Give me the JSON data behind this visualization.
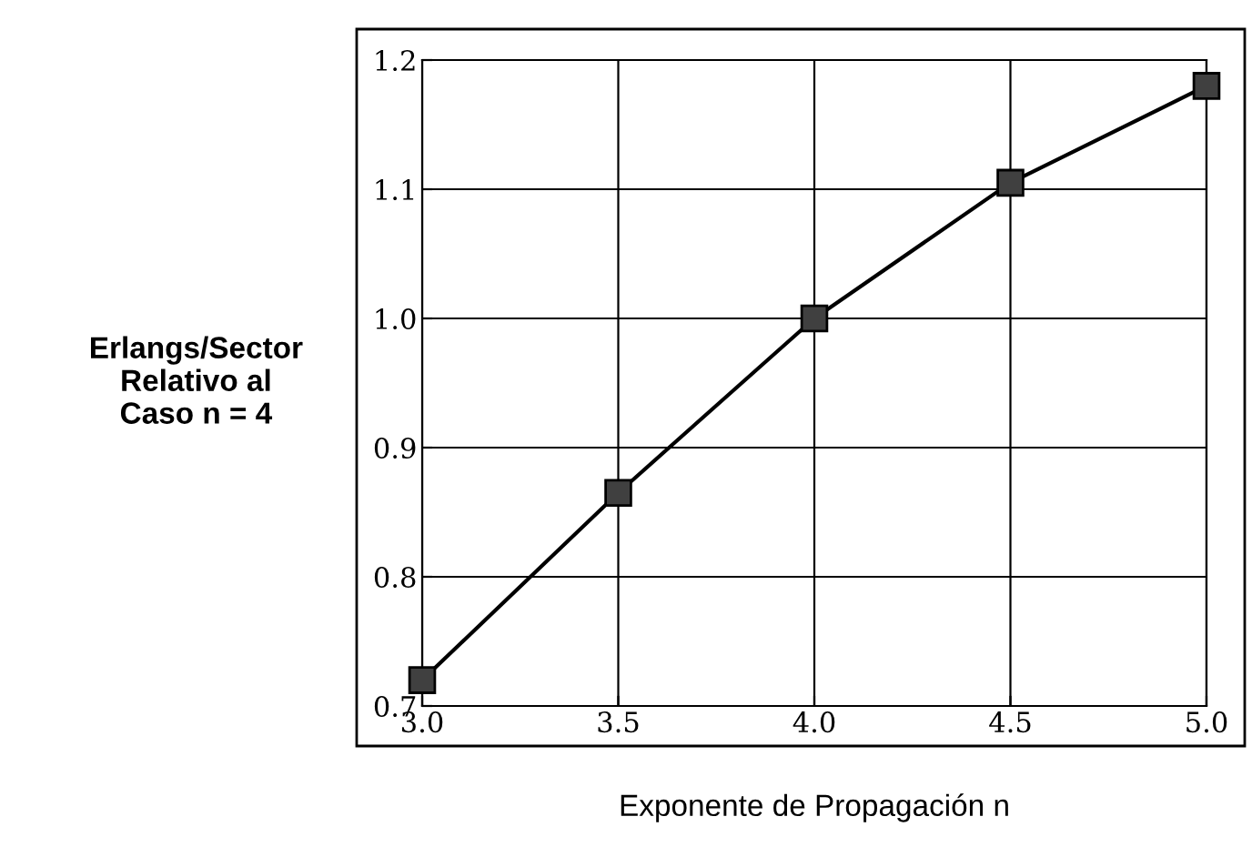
{
  "chart_data": {
    "type": "line",
    "xlabel": "Exponente de Propagación n",
    "ylabel": "Erlangs/Sector\nRelativo al\nCaso n = 4",
    "x": [
      3.0,
      3.5,
      4.0,
      4.5,
      5.0
    ],
    "series": [
      {
        "color": "#000000",
        "values": [
          0.72,
          0.865,
          1.0,
          1.105,
          1.18
        ]
      }
    ],
    "xlim": [
      3.0,
      5.0
    ],
    "ylim": [
      0.7,
      1.2
    ],
    "xticks": [
      {
        "value": 3.0,
        "label": "3.0"
      },
      {
        "value": 3.5,
        "label": "3.5"
      },
      {
        "value": 4.0,
        "label": "4.0"
      },
      {
        "value": 4.5,
        "label": "4.5"
      },
      {
        "value": 5.0,
        "label": "5.0"
      }
    ],
    "yticks": [
      {
        "value": 0.7,
        "label": "0.7"
      },
      {
        "value": 0.8,
        "label": "0.8"
      },
      {
        "value": 0.9,
        "label": "0.9"
      },
      {
        "value": 1.0,
        "label": "1.0"
      },
      {
        "value": 1.1,
        "label": "1.1"
      },
      {
        "value": 1.2,
        "label": "1.2"
      }
    ],
    "grid": true,
    "marker": "square",
    "line_style": "solid"
  }
}
